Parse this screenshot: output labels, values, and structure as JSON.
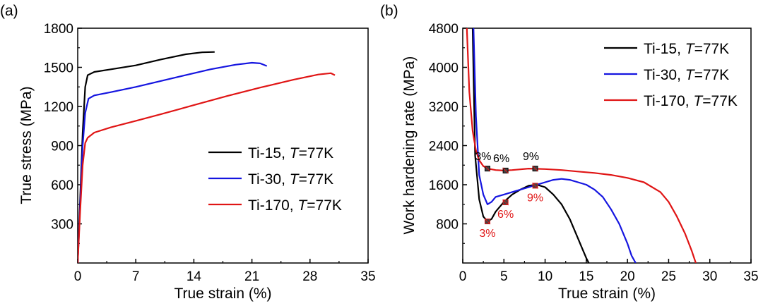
{
  "chart_data": [
    {
      "panel": "(a)",
      "type": "line",
      "xlabel": "True strain (%)",
      "ylabel": "True stress (MPa)",
      "xlim": [
        0,
        35
      ],
      "ylim": [
        0,
        1800
      ],
      "xticks": [
        "0",
        "7",
        "14",
        "21",
        "28",
        "35"
      ],
      "yticks": [
        "300",
        "600",
        "900",
        "1200",
        "1500",
        "1800"
      ],
      "legend_position": "bottom-right",
      "series": [
        {
          "name": "Ti-15",
          "temp_label": "T",
          "temp_value": "=77K",
          "color": "#000000",
          "x": [
            0,
            0.3,
            0.6,
            0.9,
            1.2,
            2,
            4,
            7,
            10,
            13,
            15,
            16.5
          ],
          "y": [
            0,
            500,
            1000,
            1350,
            1440,
            1465,
            1485,
            1515,
            1560,
            1600,
            1615,
            1618
          ]
        },
        {
          "name": "Ti-30",
          "temp_label": "T",
          "temp_value": "=77K",
          "color": "#1515e0",
          "x": [
            0,
            0.3,
            0.6,
            0.9,
            1.3,
            2,
            4,
            7,
            10,
            13,
            16,
            19,
            21,
            22,
            22.8
          ],
          "y": [
            0,
            450,
            900,
            1150,
            1260,
            1285,
            1310,
            1350,
            1395,
            1440,
            1485,
            1520,
            1535,
            1530,
            1510
          ]
        },
        {
          "name": "Ti-170",
          "temp_label": "T",
          "temp_value": "=77K",
          "color": "#e01515",
          "x": [
            0,
            0.3,
            0.6,
            0.9,
            1.2,
            2,
            4,
            7,
            10,
            14,
            18,
            22,
            26,
            29,
            30.5,
            31
          ],
          "y": [
            0,
            400,
            750,
            920,
            960,
            1000,
            1040,
            1090,
            1140,
            1210,
            1280,
            1345,
            1405,
            1445,
            1455,
            1440
          ]
        }
      ]
    },
    {
      "panel": "(b)",
      "type": "line",
      "xlabel": "True strain (%)",
      "ylabel": "Work hardening rate (MPa)",
      "xlim": [
        0,
        35
      ],
      "ylim": [
        0,
        4800
      ],
      "xticks": [
        "0",
        "5",
        "10",
        "15",
        "20",
        "25",
        "30",
        "35"
      ],
      "yticks": [
        "800",
        "1600",
        "2400",
        "3200",
        "4000",
        "4800"
      ],
      "legend_position": "top-right",
      "series": [
        {
          "name": "Ti-15",
          "temp_label": "T",
          "temp_value": "=77K",
          "color": "#000000",
          "x": [
            1.2,
            1.5,
            2,
            2.5,
            3,
            3.5,
            4,
            5,
            6,
            7,
            8,
            9,
            10,
            11,
            12,
            13,
            14,
            14.5,
            15,
            15.3
          ],
          "y": [
            4800,
            2200,
            1300,
            950,
            850,
            900,
            1050,
            1250,
            1400,
            1500,
            1580,
            1600,
            1550,
            1400,
            1200,
            900,
            500,
            300,
            100,
            0
          ]
        },
        {
          "name": "Ti-30",
          "temp_label": "T",
          "temp_value": "=77K",
          "color": "#1515e0",
          "x": [
            1.3,
            1.6,
            2,
            2.5,
            3,
            3.5,
            4,
            5,
            6,
            7,
            8,
            9,
            10,
            11,
            12,
            13,
            14,
            15,
            16,
            17,
            18,
            19,
            20,
            20.5,
            21
          ],
          "y": [
            4800,
            3000,
            1800,
            1400,
            1200,
            1250,
            1350,
            1400,
            1450,
            1500,
            1550,
            1600,
            1650,
            1700,
            1720,
            1700,
            1650,
            1600,
            1500,
            1350,
            1100,
            800,
            400,
            150,
            0
          ]
        },
        {
          "name": "Ti-170",
          "temp_label": "T",
          "temp_value": "=77K",
          "color": "#e01515",
          "x": [
            0.5,
            0.8,
            1.2,
            1.6,
            2,
            2.5,
            3,
            4,
            5,
            6,
            8,
            10,
            12,
            14,
            16,
            18,
            20,
            22,
            24,
            25,
            26,
            27,
            27.8,
            28.3
          ],
          "y": [
            4800,
            3500,
            2700,
            2300,
            2100,
            1980,
            1930,
            1900,
            1890,
            1900,
            1930,
            1920,
            1900,
            1870,
            1840,
            1800,
            1740,
            1650,
            1450,
            1250,
            950,
            600,
            250,
            0
          ]
        }
      ],
      "markers": [
        {
          "series": "Ti-170",
          "x": 3,
          "y": 1930,
          "label": "3%",
          "color": "#000000"
        },
        {
          "series": "Ti-170",
          "x": 5.2,
          "y": 1890,
          "label": "6%",
          "color": "#000000"
        },
        {
          "series": "Ti-170",
          "x": 8.8,
          "y": 1930,
          "label": "9%",
          "color": "#000000"
        },
        {
          "series": "Ti-15",
          "x": 3,
          "y": 850,
          "label": "3%",
          "color": "#e01515"
        },
        {
          "series": "Ti-15",
          "x": 5.2,
          "y": 1240,
          "label": "6%",
          "color": "#e01515"
        },
        {
          "series": "Ti-15",
          "x": 8.8,
          "y": 1580,
          "label": "9%",
          "color": "#e01515"
        }
      ]
    }
  ]
}
